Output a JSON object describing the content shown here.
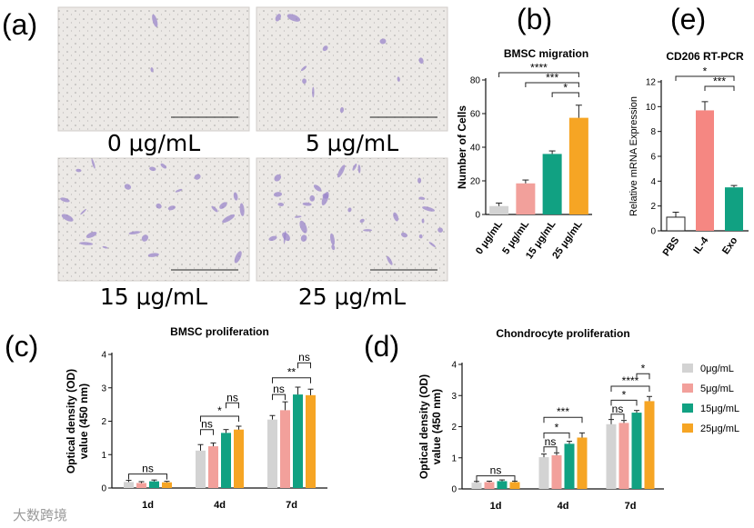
{
  "panel_a": {
    "label": "(a)",
    "images": [
      {
        "caption": "0 μg/mL",
        "density": 0.05
      },
      {
        "caption": "5 μg/mL",
        "density": 0.25
      },
      {
        "caption": "15 μg/mL",
        "density": 0.6
      },
      {
        "caption": "25 μg/mL",
        "density": 0.8
      }
    ]
  },
  "watermark": "大数跨境",
  "colors": {
    "s0": "#d3d3d3",
    "s1": "#f2a09b",
    "s2": "#11a182",
    "s3": "#f6a524"
  },
  "chart_data": [
    {
      "id": "b",
      "panel_label": "(b)",
      "type": "bar",
      "title": "BMSC migration",
      "ylabel": "Number of Cells",
      "xlabel": "",
      "ylim": [
        0,
        80
      ],
      "yticks": [
        0,
        20,
        40,
        60,
        80
      ],
      "categories": [
        "0 μg/mL",
        "5 μg/mL",
        "15 μg/mL",
        "25 μg/mL"
      ],
      "values": [
        5,
        18.5,
        36,
        57.5
      ],
      "errors": [
        1.8,
        2,
        1.8,
        7.5
      ],
      "colors": [
        "#d3d3d3",
        "#f2a09b",
        "#11a182",
        "#f6a524"
      ],
      "significance": [
        {
          "from": 0,
          "to": 3,
          "label": "****"
        },
        {
          "from": 1,
          "to": 3,
          "label": "***"
        },
        {
          "from": 2,
          "to": 3,
          "label": "*"
        }
      ]
    },
    {
      "id": "e",
      "panel_label": "(e)",
      "type": "bar",
      "title": "CD206 RT-PCR",
      "ylabel": "Relative mRNA Expression",
      "xlabel": "",
      "ylim": [
        0,
        12
      ],
      "yticks": [
        0,
        2,
        4,
        6,
        8,
        10,
        12
      ],
      "categories": [
        "PBS",
        "IL-4",
        "Exo"
      ],
      "values": [
        1.1,
        9.7,
        3.5
      ],
      "errors": [
        0.4,
        0.7,
        0.15
      ],
      "colors": [
        "#ffffff",
        "#f58782",
        "#11a182"
      ],
      "significance": [
        {
          "from": 0,
          "to": 2,
          "label": "*"
        },
        {
          "from": 1,
          "to": 2,
          "label": "***"
        }
      ]
    },
    {
      "id": "c",
      "panel_label": "(c)",
      "type": "bar",
      "title": "BMSC proliferation",
      "ylabel": "Optical density (OD) value (450 nm)",
      "xlabel": "",
      "ylim": [
        0,
        4
      ],
      "yticks": [
        0,
        1,
        2,
        3,
        4
      ],
      "categories": [
        "1d",
        "4d",
        "7d"
      ],
      "series": [
        {
          "values": [
            0.18,
            1.12,
            2.05
          ],
          "errors": [
            0.05,
            0.18,
            0.12
          ]
        },
        {
          "values": [
            0.15,
            1.25,
            2.33
          ],
          "errors": [
            0.04,
            0.1,
            0.25
          ]
        },
        {
          "values": [
            0.2,
            1.65,
            2.8
          ],
          "errors": [
            0.04,
            0.1,
            0.22
          ]
        },
        {
          "values": [
            0.17,
            1.75,
            2.78
          ],
          "errors": [
            0.03,
            0.1,
            0.18
          ]
        }
      ],
      "significance": [
        {
          "group": 0,
          "from": 0,
          "to": 3,
          "label": "ns",
          "level": 0.42
        },
        {
          "group": 1,
          "from": 0,
          "to": 1,
          "label": "ns",
          "level": 1.75
        },
        {
          "group": 1,
          "from": 0,
          "to": 3,
          "label": "*",
          "level": 2.15
        },
        {
          "group": 1,
          "from": 2,
          "to": 3,
          "label": "ns",
          "level": 2.55
        },
        {
          "group": 2,
          "from": 0,
          "to": 1,
          "label": "ns",
          "level": 2.8
        },
        {
          "group": 2,
          "from": 0,
          "to": 3,
          "label": "**",
          "level": 3.3
        },
        {
          "group": 2,
          "from": 2,
          "to": 3,
          "label": "ns",
          "level": 3.75
        }
      ]
    },
    {
      "id": "d",
      "panel_label": "(d)",
      "type": "bar",
      "title": "Chondrocyte proliferation",
      "ylabel": "Optical density (OD) value (450 nm)",
      "xlabel": "",
      "ylim": [
        0,
        4
      ],
      "yticks": [
        0,
        1,
        2,
        3,
        4
      ],
      "categories": [
        "1d",
        "4d",
        "7d"
      ],
      "legend": {
        "position": "right",
        "labels": [
          "0μg/mL",
          "5μg/mL",
          "15μg/mL",
          "25μg/mL"
        ]
      },
      "series": [
        {
          "values": [
            0.2,
            1.02,
            2.08
          ],
          "errors": [
            0.04,
            0.1,
            0.15
          ]
        },
        {
          "values": [
            0.22,
            1.08,
            2.12
          ],
          "errors": [
            0.03,
            0.08,
            0.08
          ]
        },
        {
          "values": [
            0.25,
            1.45,
            2.45
          ],
          "errors": [
            0.04,
            0.08,
            0.07
          ]
        },
        {
          "values": [
            0.22,
            1.65,
            2.82
          ],
          "errors": [
            0.03,
            0.15,
            0.15
          ]
        }
      ],
      "significance": [
        {
          "group": 0,
          "from": 0,
          "to": 3,
          "label": "ns",
          "level": 0.42
        },
        {
          "group": 1,
          "from": 0,
          "to": 1,
          "label": "ns",
          "level": 1.35
        },
        {
          "group": 1,
          "from": 0,
          "to": 2,
          "label": "*",
          "level": 1.8
        },
        {
          "group": 1,
          "from": 0,
          "to": 3,
          "label": "***",
          "level": 2.3
        },
        {
          "group": 2,
          "from": 0,
          "to": 1,
          "label": "ns",
          "level": 2.4
        },
        {
          "group": 2,
          "from": 0,
          "to": 2,
          "label": "*",
          "level": 2.85
        },
        {
          "group": 2,
          "from": 0,
          "to": 3,
          "label": "****",
          "level": 3.3
        },
        {
          "group": 2,
          "from": 2,
          "to": 3,
          "label": "*",
          "level": 3.7
        }
      ]
    }
  ]
}
